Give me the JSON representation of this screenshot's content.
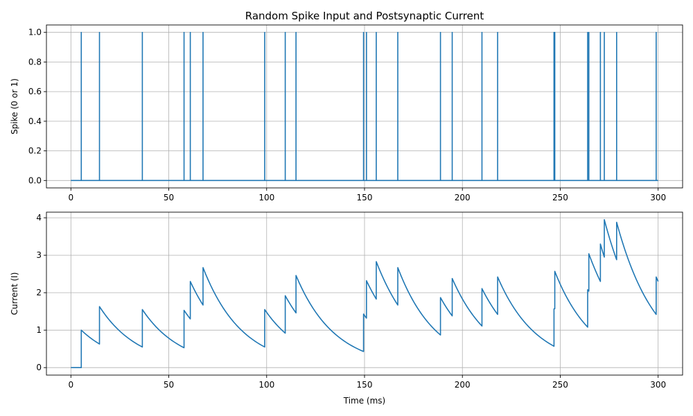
{
  "title": "Random Spike Input and Postsynaptic Current",
  "colors": {
    "line": "#1f77b4",
    "grid": "#b0b0b0",
    "axis": "#000000"
  },
  "chart_data": [
    {
      "type": "line",
      "title": "Random Spike Input and Postsynaptic Current",
      "xlabel": "",
      "ylabel": "Spike (0 or 1)",
      "xlim": [
        -12.5,
        312.5
      ],
      "ylim": [
        -0.05,
        1.05
      ],
      "xticks": [
        0,
        50,
        100,
        150,
        200,
        250,
        300
      ],
      "yticks": [
        0.0,
        0.2,
        0.4,
        0.6,
        0.8,
        1.0
      ],
      "ytick_labels": [
        "0.0",
        "0.2",
        "0.4",
        "0.6",
        "0.8",
        "1.0"
      ],
      "grid": true,
      "series": [
        {
          "kind": "spike-train",
          "x_range": [
            0,
            300
          ],
          "spike_times": [
            5.3,
            14.6,
            36.5,
            57.8,
            61.0,
            67.5,
            99.0,
            109.5,
            115.0,
            149.5,
            151.0,
            156.0,
            167.0,
            188.8,
            194.8,
            210.0,
            218.0,
            246.8,
            247.2,
            264.0,
            264.6,
            270.5,
            272.5,
            278.8,
            299.0
          ]
        }
      ]
    },
    {
      "type": "line",
      "title": "",
      "xlabel": "Time (ms)",
      "ylabel": "Current (I)",
      "xlim": [
        -12.5,
        312.5
      ],
      "ylim": [
        -0.2,
        4.15
      ],
      "xticks": [
        0,
        50,
        100,
        150,
        200,
        250,
        300
      ],
      "yticks": [
        0,
        1,
        2,
        3,
        4
      ],
      "ytick_labels": [
        "0",
        "1",
        "2",
        "3",
        "4"
      ],
      "grid": true,
      "series": [
        {
          "kind": "decaying-current",
          "points": [
            [
              0,
              0
            ],
            [
              5.3,
              0
            ],
            [
              5.3,
              1.0
            ],
            [
              14.6,
              0.63
            ],
            [
              14.6,
              1.63
            ],
            [
              36.5,
              0.55
            ],
            [
              36.5,
              1.55
            ],
            [
              57.8,
              0.53
            ],
            [
              57.8,
              1.53
            ],
            [
              61.0,
              1.3
            ],
            [
              61.0,
              2.3
            ],
            [
              67.5,
              1.67
            ],
            [
              67.5,
              2.67
            ],
            [
              99.0,
              0.55
            ],
            [
              99.0,
              1.55
            ],
            [
              109.5,
              0.92
            ],
            [
              109.5,
              1.92
            ],
            [
              115.0,
              1.46
            ],
            [
              115.0,
              2.46
            ],
            [
              149.5,
              0.43
            ],
            [
              149.5,
              1.43
            ],
            [
              151.0,
              1.32
            ],
            [
              151.0,
              2.32
            ],
            [
              156.0,
              1.83
            ],
            [
              156.0,
              2.83
            ],
            [
              167.0,
              1.67
            ],
            [
              167.0,
              2.67
            ],
            [
              188.8,
              0.87
            ],
            [
              188.8,
              1.87
            ],
            [
              194.8,
              1.38
            ],
            [
              194.8,
              2.38
            ],
            [
              210.0,
              1.11
            ],
            [
              210.0,
              2.11
            ],
            [
              218.0,
              1.42
            ],
            [
              218.0,
              2.42
            ],
            [
              246.8,
              0.57
            ],
            [
              246.8,
              1.57
            ],
            [
              247.2,
              1.57
            ],
            [
              247.2,
              2.57
            ],
            [
              264.0,
              1.08
            ],
            [
              264.0,
              2.08
            ],
            [
              264.6,
              2.04
            ],
            [
              264.6,
              3.04
            ],
            [
              270.5,
              2.3
            ],
            [
              270.5,
              3.3
            ],
            [
              272.5,
              2.95
            ],
            [
              272.5,
              3.95
            ],
            [
              278.8,
              2.88
            ],
            [
              278.8,
              3.88
            ],
            [
              299.0,
              1.42
            ],
            [
              299.0,
              2.42
            ],
            [
              300.0,
              2.3
            ]
          ]
        }
      ]
    }
  ]
}
